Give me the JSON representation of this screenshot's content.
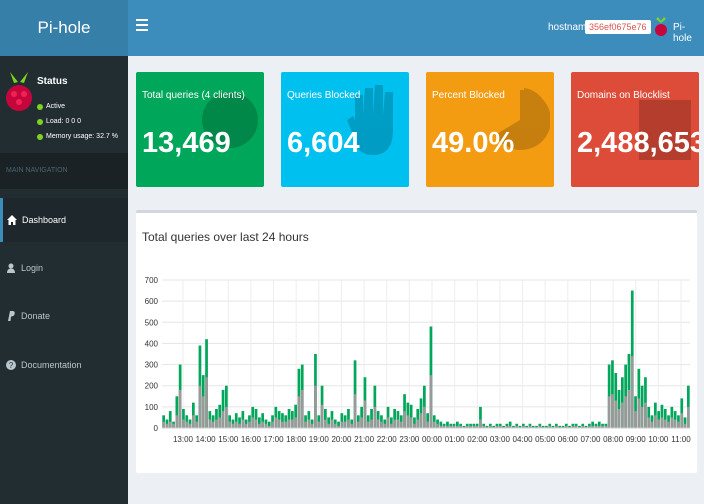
{
  "header": {
    "logo": "Pi-hole",
    "hostname_label": "hostname:",
    "hostname_value": "356ef0675e76",
    "user": "Pi-hole"
  },
  "sidebar": {
    "status": {
      "title": "Status",
      "active": "Active",
      "load": "Load: 0 0 0",
      "memory": "Memory usage: 32.7 %"
    },
    "nav_header": "MAIN NAVIGATION",
    "items": [
      {
        "label": "Dashboard",
        "icon": "home-icon"
      },
      {
        "label": "Login",
        "icon": "user-icon"
      },
      {
        "label": "Donate",
        "icon": "paypal-icon"
      },
      {
        "label": "Documentation",
        "icon": "question-circle-icon"
      }
    ]
  },
  "stats": [
    {
      "label": "Total queries (4 clients)",
      "value": "13,469",
      "color": "#00a65a",
      "icon": "globe-icon"
    },
    {
      "label": "Queries Blocked",
      "value": "6,604",
      "color": "#00c0ef",
      "icon": "hand-icon"
    },
    {
      "label": "Percent Blocked",
      "value": "49.0%",
      "color": "#f39c12",
      "icon": "pie-chart-icon"
    },
    {
      "label": "Domains on Blocklist",
      "value": "2,488,653",
      "color": "#dd4b39",
      "icon": "list-icon"
    }
  ],
  "chart_data": {
    "type": "bar",
    "title": "Total queries over last 24 hours",
    "ylim": [
      0,
      700
    ],
    "yticks": [
      0,
      100,
      200,
      300,
      400,
      500,
      600,
      700
    ],
    "xticks": [
      "13:00",
      "14:00",
      "15:00",
      "16:00",
      "17:00",
      "18:00",
      "19:00",
      "20:00",
      "21:00",
      "22:00",
      "23:00",
      "00:00",
      "01:00",
      "02:00",
      "03:00",
      "04:00",
      "05:00",
      "06:00",
      "07:00",
      "08:00",
      "09:00",
      "10:00",
      "11:00"
    ],
    "series": [
      {
        "color": "#00a65a",
        "values": [
          60,
          40,
          80,
          30,
          150,
          300,
          90,
          60,
          40,
          120,
          60,
          390,
          250,
          420,
          80,
          60,
          90,
          110,
          180,
          200,
          60,
          40,
          70,
          50,
          80,
          40,
          60,
          100,
          90,
          50,
          70,
          40,
          30,
          60,
          100,
          80,
          70,
          60,
          90,
          80,
          110,
          280,
          300,
          60,
          80,
          40,
          350,
          60,
          200,
          90,
          50,
          80,
          40,
          30,
          70,
          60,
          90,
          40,
          320,
          60,
          100,
          240,
          60,
          90,
          200,
          80,
          60,
          40,
          100,
          50,
          90,
          80,
          60,
          160,
          120,
          110,
          50,
          90,
          140,
          200,
          70,
          480,
          60,
          40,
          30,
          20,
          30,
          20,
          20,
          30,
          20,
          10,
          20,
          20,
          20,
          20,
          100,
          20,
          10,
          20,
          10,
          20,
          20,
          10,
          20,
          30,
          10,
          20,
          10,
          20,
          10,
          20,
          10,
          10,
          20,
          10,
          10,
          20,
          10,
          20,
          10,
          10,
          20,
          10,
          20,
          20,
          10,
          20,
          10,
          20,
          30,
          20,
          30,
          20,
          20,
          300,
          320,
          260,
          180,
          240,
          300,
          350,
          650,
          150,
          280,
          200,
          240,
          100,
          60,
          120,
          80,
          110,
          90,
          60,
          100,
          80,
          60,
          140,
          50,
          200
        ]
      },
      {
        "color": "#999999",
        "values": [
          30,
          20,
          30,
          20,
          60,
          180,
          40,
          30,
          20,
          60,
          30,
          200,
          150,
          240,
          40,
          30,
          40,
          50,
          80,
          100,
          30,
          20,
          30,
          20,
          40,
          20,
          30,
          50,
          40,
          20,
          30,
          20,
          10,
          30,
          50,
          40,
          30,
          30,
          40,
          40,
          50,
          150,
          180,
          30,
          40,
          20,
          200,
          30,
          110,
          40,
          20,
          40,
          20,
          10,
          30,
          30,
          40,
          20,
          160,
          30,
          50,
          130,
          30,
          40,
          100,
          40,
          30,
          20,
          50,
          20,
          40,
          40,
          30,
          80,
          60,
          50,
          20,
          40,
          70,
          100,
          30,
          250,
          30,
          20,
          10,
          10,
          10,
          10,
          10,
          10,
          10,
          5,
          10,
          10,
          10,
          10,
          40,
          10,
          5,
          10,
          5,
          10,
          10,
          5,
          10,
          10,
          5,
          10,
          5,
          10,
          5,
          10,
          5,
          5,
          10,
          5,
          5,
          10,
          5,
          10,
          5,
          5,
          10,
          5,
          10,
          10,
          5,
          10,
          5,
          10,
          10,
          10,
          10,
          10,
          10,
          150,
          160,
          130,
          90,
          120,
          150,
          180,
          340,
          80,
          140,
          100,
          120,
          50,
          30,
          60,
          40,
          50,
          40,
          30,
          50,
          40,
          30,
          70,
          20,
          100
        ]
      }
    ]
  }
}
